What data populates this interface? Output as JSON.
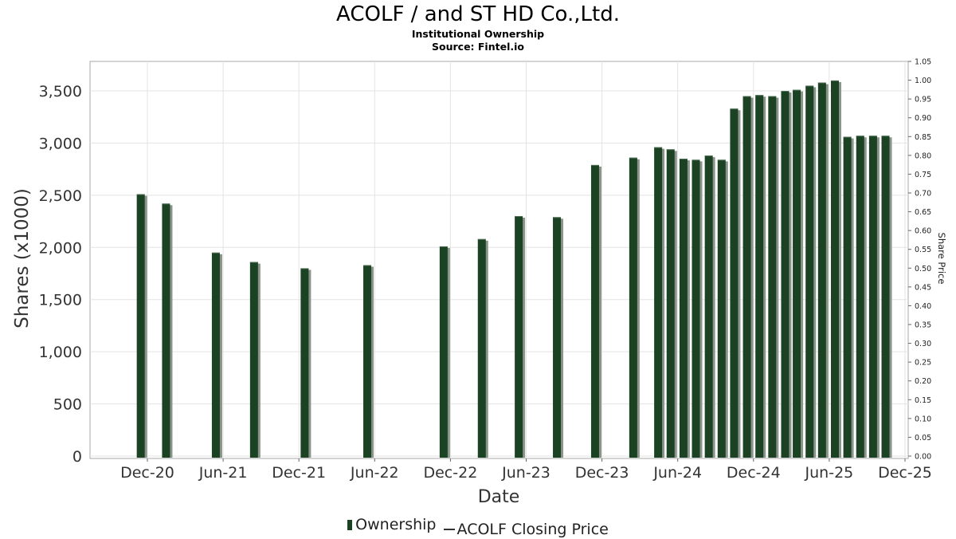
{
  "chart_data": {
    "type": "bar",
    "title": "ACOLF / and ST HD Co.,Ltd.",
    "subtitle": "Institutional Ownership",
    "source": "Source: Fintel.io",
    "xlabel": "Date",
    "ylabel": "Shares (x1000)",
    "y2label": "Share Price",
    "ylim": [
      0,
      3800
    ],
    "y2lim": [
      0,
      1.05
    ],
    "yticks": [
      "0",
      "500",
      "1,000",
      "1,500",
      "2,000",
      "2,500",
      "3,000",
      "3,500"
    ],
    "y2ticks": [
      "0.00",
      "0.05",
      "0.10",
      "0.15",
      "0.20",
      "0.25",
      "0.30",
      "0.35",
      "0.40",
      "0.45",
      "0.50",
      "0.55",
      "0.60",
      "0.65",
      "0.70",
      "0.75",
      "0.80",
      "0.85",
      "0.90",
      "0.95",
      "1.00",
      "1.05"
    ],
    "xticks": [
      "Dec-20",
      "Jun-21",
      "Dec-21",
      "Jun-22",
      "Dec-22",
      "Jun-23",
      "Dec-23",
      "Jun-24",
      "Dec-24",
      "Jun-25",
      "Dec-25"
    ],
    "grid": true,
    "legend_position": "bottom",
    "bar_color": "#1b4223",
    "series": [
      {
        "name": "Ownership",
        "points": [
          {
            "x": "2020-11-15",
            "y": 2510
          },
          {
            "x": "2021-01-15",
            "y": 2420
          },
          {
            "x": "2021-05-15",
            "y": 1950
          },
          {
            "x": "2021-08-15",
            "y": 1860
          },
          {
            "x": "2021-12-15",
            "y": 1800
          },
          {
            "x": "2022-05-15",
            "y": 1830
          },
          {
            "x": "2022-11-15",
            "y": 2010
          },
          {
            "x": "2023-02-15",
            "y": 2080
          },
          {
            "x": "2023-05-15",
            "y": 2300
          },
          {
            "x": "2023-08-15",
            "y": 2290
          },
          {
            "x": "2023-11-15",
            "y": 2790
          },
          {
            "x": "2024-02-15",
            "y": 2860
          },
          {
            "x": "2024-04-15",
            "y": 2960
          },
          {
            "x": "2024-05-15",
            "y": 2940
          },
          {
            "x": "2024-06-15",
            "y": 2850
          },
          {
            "x": "2024-07-15",
            "y": 2840
          },
          {
            "x": "2024-08-15",
            "y": 2880
          },
          {
            "x": "2024-09-15",
            "y": 2840
          },
          {
            "x": "2024-10-15",
            "y": 3330
          },
          {
            "x": "2024-11-15",
            "y": 3450
          },
          {
            "x": "2024-12-15",
            "y": 3460
          },
          {
            "x": "2025-01-15",
            "y": 3450
          },
          {
            "x": "2025-02-15",
            "y": 3500
          },
          {
            "x": "2025-03-15",
            "y": 3510
          },
          {
            "x": "2025-04-15",
            "y": 3550
          },
          {
            "x": "2025-05-15",
            "y": 3580
          },
          {
            "x": "2025-06-15",
            "y": 3600
          },
          {
            "x": "2025-07-15",
            "y": 3060
          },
          {
            "x": "2025-08-15",
            "y": 3070
          },
          {
            "x": "2025-09-15",
            "y": 3070
          },
          {
            "x": "2025-10-15",
            "y": 3070
          }
        ]
      },
      {
        "name": "ACOLF Closing Price",
        "points": []
      }
    ]
  },
  "legend": {
    "ownership": "Ownership",
    "price": "ACOLF Closing Price"
  }
}
